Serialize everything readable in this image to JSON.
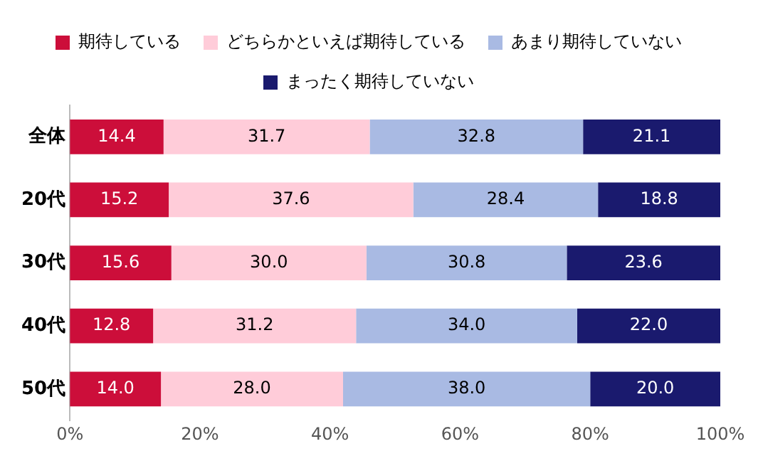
{
  "chart_data": {
    "type": "bar",
    "orientation": "horizontal",
    "stacked": true,
    "categories": [
      "全体",
      "20代",
      "30代",
      "40代",
      "50代"
    ],
    "series": [
      {
        "name": "期待している",
        "color": "#cc0e3a",
        "values": [
          14.4,
          15.2,
          15.6,
          12.8,
          14.0
        ],
        "value_labels": [
          "14.4",
          "15.2",
          "15.6",
          "12.8",
          "14.0"
        ]
      },
      {
        "name": "どちらかといえば期待している",
        "color": "#ffccd9",
        "values": [
          31.7,
          37.6,
          30.0,
          31.2,
          28.0
        ],
        "value_labels": [
          "31.7",
          "37.6",
          "30.0",
          "31.2",
          "28.0"
        ]
      },
      {
        "name": "あまり期待していない",
        "color": "#a9bae3",
        "values": [
          32.8,
          28.4,
          30.8,
          34.0,
          38.0
        ],
        "value_labels": [
          "32.8",
          "28.4",
          "30.8",
          "34.0",
          "38.0"
        ]
      },
      {
        "name": "まったく期待していない",
        "color": "#1a1a6e",
        "values": [
          21.1,
          18.8,
          23.6,
          22.0,
          20.0
        ],
        "value_labels": [
          "21.1",
          "18.8",
          "23.6",
          "22.0",
          "20.0"
        ]
      }
    ],
    "xlim": [
      0,
      100
    ],
    "xticks": [
      {
        "value": 0,
        "label": "0%"
      },
      {
        "value": 20,
        "label": "20%"
      },
      {
        "value": 40,
        "label": "40%"
      },
      {
        "value": 60,
        "label": "60%"
      },
      {
        "value": 80,
        "label": "80%"
      },
      {
        "value": 100,
        "label": "100%"
      }
    ],
    "legend": "top",
    "grid": false
  }
}
